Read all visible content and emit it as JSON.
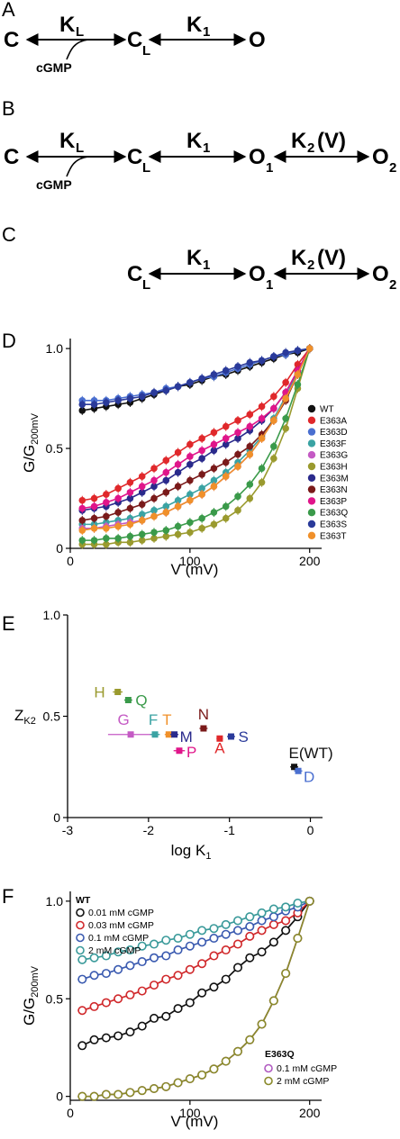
{
  "panels": {
    "A": "A",
    "B": "B",
    "C": "C",
    "D": "D",
    "E": "E",
    "F": "F"
  },
  "schemes": {
    "C": "C",
    "CL": "C",
    "L": "L",
    "O": "O",
    "O1": "O",
    "O2": "O",
    "one": "1",
    "two": "2",
    "KL_K": "K",
    "K1_K": "K",
    "K2_K": "K",
    "K2_V": "(V)",
    "cGMP": "cGMP"
  },
  "chart_data": [
    {
      "type": "line",
      "panel": "D",
      "xlabel": "V (mV)",
      "ylabel": "G/G",
      "ylabel_sub": "200mV",
      "xlim": [
        0,
        210
      ],
      "ylim": [
        0,
        1.05
      ],
      "xticks": [
        "0",
        "100",
        "200"
      ],
      "yticks": [
        "0",
        "0.5",
        "1.0"
      ],
      "x": [
        10,
        20,
        30,
        40,
        50,
        60,
        70,
        80,
        90,
        100,
        110,
        120,
        130,
        140,
        150,
        160,
        170,
        180,
        190,
        200
      ],
      "series": [
        {
          "name": "WT",
          "color": "#111111",
          "values": [
            0.69,
            0.7,
            0.71,
            0.72,
            0.73,
            0.75,
            0.77,
            0.79,
            0.81,
            0.82,
            0.84,
            0.86,
            0.87,
            0.89,
            0.91,
            0.93,
            0.95,
            0.97,
            0.98,
            1.0
          ]
        },
        {
          "name": "E363A",
          "color": "#e0282b",
          "values": [
            0.24,
            0.25,
            0.27,
            0.3,
            0.33,
            0.36,
            0.4,
            0.44,
            0.48,
            0.52,
            0.55,
            0.58,
            0.61,
            0.64,
            0.67,
            0.71,
            0.76,
            0.83,
            0.92,
            1.0
          ]
        },
        {
          "name": "E363D",
          "color": "#4a6fd0",
          "values": [
            0.74,
            0.74,
            0.74,
            0.75,
            0.76,
            0.77,
            0.78,
            0.8,
            0.81,
            0.83,
            0.85,
            0.86,
            0.88,
            0.9,
            0.92,
            0.94,
            0.96,
            0.97,
            0.99,
            1.0
          ]
        },
        {
          "name": "E363F",
          "color": "#3aa3a3",
          "values": [
            0.12,
            0.12,
            0.13,
            0.14,
            0.15,
            0.17,
            0.19,
            0.21,
            0.24,
            0.27,
            0.3,
            0.34,
            0.38,
            0.43,
            0.49,
            0.56,
            0.65,
            0.76,
            0.88,
            1.0
          ]
        },
        {
          "name": "E363G",
          "color": "#c45ac4",
          "values": [
            0.1,
            0.1,
            0.11,
            0.12,
            0.13,
            0.14,
            0.16,
            0.18,
            0.21,
            0.24,
            0.27,
            0.31,
            0.36,
            0.41,
            0.47,
            0.55,
            0.64,
            0.75,
            0.87,
            1.0
          ]
        },
        {
          "name": "E363H",
          "color": "#9a9a2e",
          "values": [
            0.02,
            0.02,
            0.02,
            0.03,
            0.03,
            0.04,
            0.05,
            0.06,
            0.07,
            0.08,
            0.1,
            0.12,
            0.15,
            0.19,
            0.25,
            0.33,
            0.45,
            0.6,
            0.8,
            1.0
          ]
        },
        {
          "name": "E363M",
          "color": "#2a2a8c",
          "values": [
            0.19,
            0.2,
            0.21,
            0.23,
            0.25,
            0.28,
            0.31,
            0.34,
            0.38,
            0.42,
            0.45,
            0.49,
            0.52,
            0.55,
            0.59,
            0.64,
            0.7,
            0.78,
            0.89,
            1.0
          ]
        },
        {
          "name": "E363N",
          "color": "#7a1a1a",
          "values": [
            0.14,
            0.15,
            0.16,
            0.18,
            0.2,
            0.22,
            0.25,
            0.28,
            0.31,
            0.34,
            0.37,
            0.4,
            0.43,
            0.47,
            0.51,
            0.57,
            0.64,
            0.74,
            0.87,
            1.0
          ]
        },
        {
          "name": "E363P",
          "color": "#e0158a",
          "values": [
            0.2,
            0.21,
            0.23,
            0.25,
            0.28,
            0.31,
            0.34,
            0.38,
            0.42,
            0.46,
            0.49,
            0.52,
            0.55,
            0.58,
            0.61,
            0.65,
            0.7,
            0.78,
            0.89,
            1.0
          ]
        },
        {
          "name": "E363Q",
          "color": "#3a9a4a",
          "values": [
            0.04,
            0.04,
            0.05,
            0.05,
            0.06,
            0.07,
            0.08,
            0.09,
            0.11,
            0.13,
            0.15,
            0.18,
            0.21,
            0.26,
            0.32,
            0.4,
            0.51,
            0.65,
            0.82,
            1.0
          ]
        },
        {
          "name": "E363S",
          "color": "#2a3a9a",
          "values": [
            0.72,
            0.72,
            0.73,
            0.74,
            0.75,
            0.76,
            0.78,
            0.79,
            0.81,
            0.83,
            0.85,
            0.87,
            0.89,
            0.91,
            0.93,
            0.94,
            0.96,
            0.98,
            0.99,
            1.0
          ]
        },
        {
          "name": "E363T",
          "color": "#f0902a",
          "values": [
            0.09,
            0.1,
            0.1,
            0.11,
            0.12,
            0.14,
            0.16,
            0.18,
            0.21,
            0.24,
            0.27,
            0.31,
            0.36,
            0.41,
            0.47,
            0.55,
            0.64,
            0.75,
            0.87,
            1.0
          ]
        }
      ]
    },
    {
      "type": "scatter",
      "panel": "E",
      "xlabel": "log K",
      "xlabel_sub": "1",
      "ylabel": "Z",
      "ylabel_sub": "K2",
      "xlim": [
        -3,
        0.15
      ],
      "ylim": [
        0,
        1.0
      ],
      "xticks": [
        "-3",
        "-2",
        "-1",
        "0"
      ],
      "yticks": [
        "0",
        "0.5",
        "1.0"
      ],
      "points": [
        {
          "label": "H",
          "x": -2.38,
          "y": 0.62,
          "xerr": 0.06,
          "color": "#9a9a2e"
        },
        {
          "label": "Q",
          "x": -2.25,
          "y": 0.58,
          "xerr": 0.05,
          "color": "#3a9a4a"
        },
        {
          "label": "G",
          "x": -2.22,
          "y": 0.41,
          "xerr": 0.28,
          "color": "#c45ac4"
        },
        {
          "label": "F",
          "x": -1.92,
          "y": 0.41,
          "xerr": 0.06,
          "color": "#3aa3a3"
        },
        {
          "label": "T",
          "x": -1.75,
          "y": 0.41,
          "xerr": 0.05,
          "color": "#f0902a"
        },
        {
          "label": "M",
          "x": -1.68,
          "y": 0.41,
          "xerr": 0.05,
          "color": "#2a2a8c"
        },
        {
          "label": "P",
          "x": -1.62,
          "y": 0.33,
          "xerr": 0.07,
          "color": "#e0158a"
        },
        {
          "label": "N",
          "x": -1.32,
          "y": 0.44,
          "xerr": 0.05,
          "color": "#7a1a1a"
        },
        {
          "label": "A",
          "x": -1.12,
          "y": 0.39,
          "xerr": 0.04,
          "color": "#e0282b"
        },
        {
          "label": "S",
          "x": -0.98,
          "y": 0.4,
          "xerr": 0.05,
          "color": "#2a3a9a"
        },
        {
          "label": "E(WT)",
          "x": -0.2,
          "y": 0.25,
          "xerr": 0.05,
          "color": "#111111"
        },
        {
          "label": "D",
          "x": -0.15,
          "y": 0.23,
          "xerr": 0.05,
          "color": "#4a6fd0"
        }
      ]
    },
    {
      "type": "line",
      "panel": "F",
      "xlabel": "V (mV)",
      "ylabel": "G/G",
      "ylabel_sub": "200mV",
      "xlim": [
        0,
        210
      ],
      "ylim": [
        -0.02,
        1.05
      ],
      "xticks": [
        "0",
        "100",
        "200"
      ],
      "yticks": [
        "0",
        "0.5",
        "1.0"
      ],
      "legend_title_1": "WT",
      "legend_title_2": "E363Q",
      "x": [
        10,
        20,
        30,
        40,
        50,
        60,
        70,
        80,
        90,
        100,
        110,
        120,
        130,
        140,
        150,
        160,
        170,
        180,
        190,
        200
      ],
      "series": [
        {
          "name": "0.01 mM cGMP",
          "group": "WT",
          "color": "#111111",
          "values": [
            0.26,
            0.29,
            0.3,
            0.31,
            0.33,
            0.36,
            0.4,
            0.41,
            0.45,
            0.48,
            0.53,
            0.56,
            0.6,
            0.66,
            0.71,
            0.74,
            0.79,
            0.85,
            0.92,
            1.0
          ]
        },
        {
          "name": "0.03 mM cGMP",
          "group": "WT",
          "color": "#d0282b",
          "values": [
            0.44,
            0.46,
            0.48,
            0.5,
            0.52,
            0.54,
            0.57,
            0.6,
            0.62,
            0.65,
            0.68,
            0.72,
            0.75,
            0.78,
            0.82,
            0.85,
            0.88,
            0.9,
            0.94,
            1.0
          ]
        },
        {
          "name": "0.1 mM cGMP",
          "group": "WT",
          "color": "#3a5ab0",
          "values": [
            0.6,
            0.62,
            0.63,
            0.65,
            0.67,
            0.69,
            0.71,
            0.72,
            0.75,
            0.77,
            0.79,
            0.81,
            0.83,
            0.85,
            0.87,
            0.9,
            0.92,
            0.95,
            0.97,
            1.0
          ]
        },
        {
          "name": "2 mM cGMP",
          "group": "WT",
          "color": "#3a9a9a",
          "values": [
            0.7,
            0.71,
            0.72,
            0.74,
            0.75,
            0.77,
            0.78,
            0.8,
            0.81,
            0.83,
            0.85,
            0.86,
            0.88,
            0.9,
            0.92,
            0.94,
            0.96,
            0.97,
            0.99,
            1.0
          ]
        },
        {
          "name": "0.1 mM cGMP",
          "group": "E363Q",
          "color": "#b05ac0",
          "values": [
            0.0,
            0.0,
            0.01,
            0.01,
            0.02,
            0.03,
            0.04,
            0.05,
            0.07,
            0.09,
            0.11,
            0.14,
            0.18,
            0.23,
            0.29,
            0.37,
            0.49,
            0.63,
            0.81,
            1.0
          ]
        },
        {
          "name": "2 mM cGMP",
          "group": "E363Q",
          "color": "#8a8a2a",
          "values": [
            0.0,
            0.0,
            0.01,
            0.01,
            0.02,
            0.03,
            0.04,
            0.05,
            0.07,
            0.09,
            0.11,
            0.14,
            0.18,
            0.23,
            0.29,
            0.37,
            0.49,
            0.63,
            0.81,
            1.0
          ]
        }
      ]
    }
  ]
}
